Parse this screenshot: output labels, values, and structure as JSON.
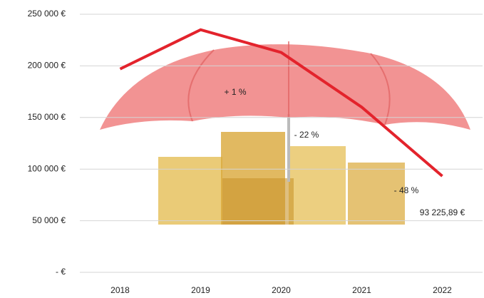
{
  "chart_data": {
    "type": "line",
    "categories": [
      "2018",
      "2019",
      "2020",
      "2021",
      "2022"
    ],
    "series": [
      {
        "color": "#e3232c",
        "values": [
          197000,
          235000,
          213000,
          160000,
          93225.89
        ]
      }
    ],
    "value_labels": [
      null,
      null,
      null,
      null,
      "93 225,89 €"
    ],
    "annotations": [
      "+ 1 %",
      "- 22 %",
      "- 48 %"
    ],
    "ylim": [
      0,
      250000
    ],
    "yticks": [
      {
        "value": 0,
        "label": "- €"
      },
      {
        "value": 50000,
        "label": "50 000 €"
      },
      {
        "value": 100000,
        "label": "100 000 €"
      },
      {
        "value": 150000,
        "label": "150 000 €"
      },
      {
        "value": 200000,
        "label": "200 000 €"
      },
      {
        "value": 250000,
        "label": "250 000 €"
      }
    ],
    "grid": true
  }
}
